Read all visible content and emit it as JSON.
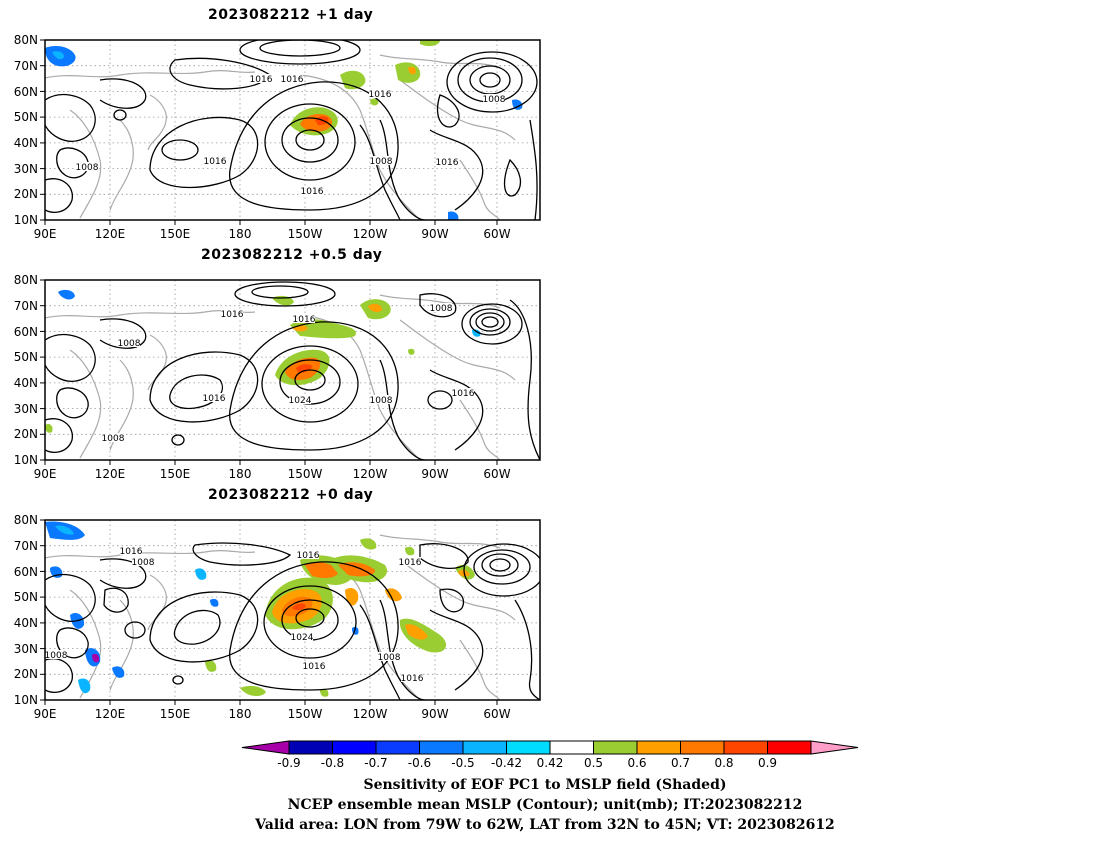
{
  "panels": [
    {
      "title": "2023082212  +1 day",
      "contour_labels": [
        "1016",
        "1016",
        "1016",
        "1008",
        "1016",
        "1008",
        "1016",
        "1008",
        "1016"
      ]
    },
    {
      "title": "2023082212  +0.5 day",
      "contour_labels": [
        "1016",
        "1016",
        "1008",
        "1008",
        "1016",
        "1024",
        "1008",
        "1016",
        "1008"
      ]
    },
    {
      "title": "2023082212  +0 day",
      "contour_labels": [
        "1016",
        "1008",
        "1016",
        "1016",
        "1024",
        "1016",
        "1008",
        "1016",
        "1008"
      ]
    }
  ],
  "y_axis_labels": [
    "80N",
    "70N",
    "60N",
    "50N",
    "40N",
    "30N",
    "20N",
    "10N"
  ],
  "x_axis_labels": [
    "90E",
    "120E",
    "150E",
    "180",
    "150W",
    "120W",
    "90W",
    "60W"
  ],
  "colorbar": {
    "ticks": [
      "-0.9",
      "-0.8",
      "-0.7",
      "-0.6",
      "-0.5",
      "-0.42",
      "0.42",
      "0.5",
      "0.6",
      "0.7",
      "0.8",
      "0.9"
    ],
    "colors": [
      "#a800a8",
      "#0000b4",
      "#0000ff",
      "#0a3cff",
      "#0a78ff",
      "#0ab4ff",
      "#00dcff",
      "#ffffff",
      "#9acd32",
      "#ff9f00",
      "#ff7800",
      "#ff4600",
      "#ff0000",
      "#ff9ec8"
    ]
  },
  "caption": {
    "line1": "Sensitivity of EOF PC1 to MSLP field (Shaded)",
    "line2": "NCEP ensemble mean MSLP (Contour); unit(mb); IT:2023082212",
    "line3": "Valid area: LON from 79W to 62W, LAT from 32N to 45N; VT: 2023082612"
  }
}
